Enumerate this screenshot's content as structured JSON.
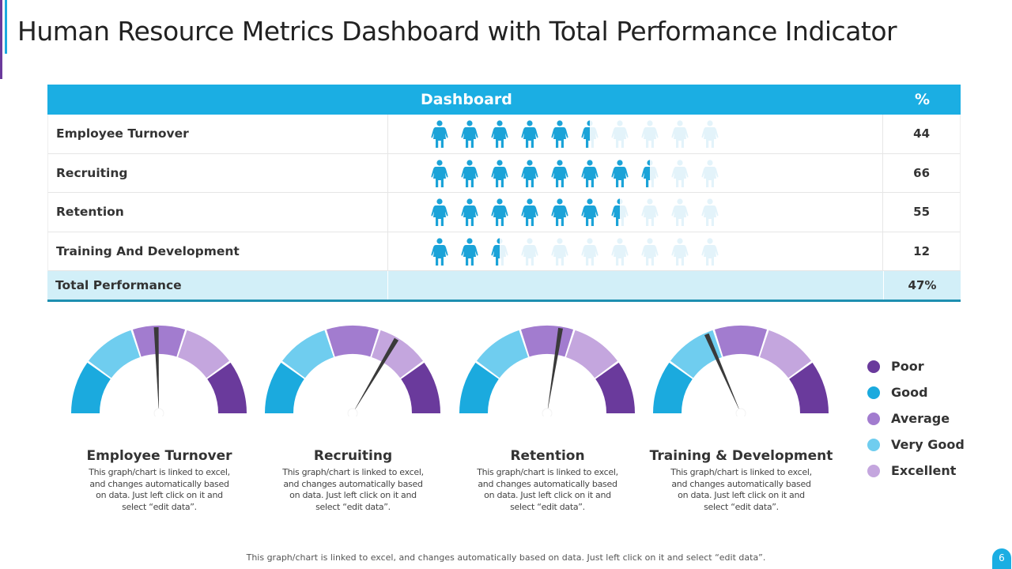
{
  "title": "Human Resource Metrics Dashboard with Total Performance Indicator",
  "table": {
    "header": {
      "label": "Dashboard",
      "pct": "%"
    },
    "rows": [
      {
        "label": "Employee Turnover",
        "value": "44",
        "icons_filled": 5.5
      },
      {
        "label": "Recruiting",
        "value": "66",
        "icons_filled": 7.5
      },
      {
        "label": "Retention",
        "value": "55",
        "icons_filled": 6.5
      },
      {
        "label": "Training And Development",
        "value": "12",
        "icons_filled": 2.5
      }
    ],
    "total": {
      "label": "Total Performance",
      "value": "47%"
    },
    "icons_total": 10,
    "icon": "female-person-icon"
  },
  "colors": {
    "accent": "#1baee3",
    "filled_icon": "#1ba3d8",
    "empty_icon": "#e3f3fa",
    "poor": "#6a3a9c",
    "good": "#1baade",
    "average": "#a27ccf",
    "very_good": "#6fcdef",
    "excellent": "#c4a6de",
    "needle": "#3a3a3a"
  },
  "gauges": [
    {
      "title": "Employee Turnover",
      "needle_fraction": 0.49,
      "desc": "This graph/chart is linked to excel, and changes automatically based on data. Just left click on it and select “edit data”."
    },
    {
      "title": "Recruiting",
      "needle_fraction": 0.67,
      "desc": "This graph/chart is linked to excel, and changes automatically based on data. Just left click on it and select “edit data”."
    },
    {
      "title": "Retention",
      "needle_fraction": 0.55,
      "desc": "This graph/chart is linked to excel, and changes automatically based on data. Just left click on it and select “edit data”."
    },
    {
      "title": "Training & Development",
      "needle_fraction": 0.37,
      "desc": "This graph/chart is linked to excel, and changes automatically based on data. Just left click on it and select “edit data”."
    }
  ],
  "gauge_segment_order": [
    "good",
    "very_good",
    "average",
    "excellent",
    "poor"
  ],
  "legend": [
    {
      "label": "Poor",
      "color": "#6a3a9c"
    },
    {
      "label": "Good",
      "color": "#1baade"
    },
    {
      "label": "Average",
      "color": "#a27ccf"
    },
    {
      "label": "Very Good",
      "color": "#6fcdef"
    },
    {
      "label": "Excellent",
      "color": "#c4a6de"
    }
  ],
  "footer": "This graph/chart is linked to excel, and changes automatically based on data. Just left click on it and select “edit data”.",
  "page_number": "6"
}
